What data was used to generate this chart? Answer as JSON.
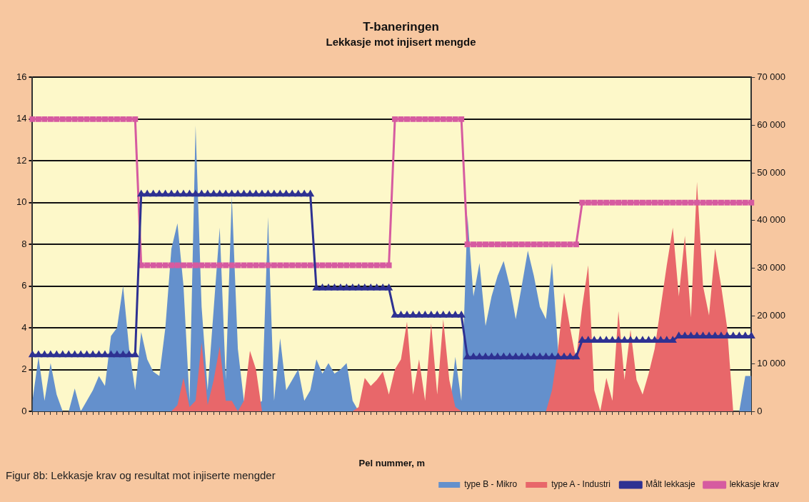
{
  "chart_data": {
    "type": "area",
    "title": "T-baneringen",
    "subtitle": "Lekkasje mot injisert mengde",
    "xlabel": "Pel nummer, m",
    "categories": [
      null,
      null,
      null,
      null,
      null,
      null,
      null,
      null,
      null,
      null,
      null,
      null,
      null,
      null,
      null,
      null,
      null,
      null,
      null,
      null,
      null,
      null,
      null,
      null,
      null,
      null,
      null,
      null,
      null,
      null,
      null,
      null,
      null,
      null,
      null,
      null,
      null,
      null,
      null,
      null,
      null,
      null,
      null,
      null,
      null,
      null,
      null,
      null,
      null,
      null,
      null,
      null,
      null,
      null,
      null,
      null,
      null,
      null,
      null,
      null,
      null,
      null,
      null,
      null,
      null,
      null,
      null,
      null,
      null,
      null,
      null,
      null,
      null,
      null,
      null,
      null,
      null,
      null,
      null,
      null,
      null,
      null,
      null,
      null,
      null,
      null,
      null,
      null,
      null,
      null,
      null,
      null,
      null,
      null,
      null,
      null,
      null,
      null,
      null,
      null,
      null,
      null,
      null,
      null,
      null,
      null,
      null,
      null,
      null,
      null,
      null,
      null,
      null,
      null,
      null,
      null,
      null,
      null,
      null,
      null
    ],
    "series": [
      {
        "name": "type B - Mikro",
        "axis": "y2",
        "color": "#6490cc",
        "values": [
          2200,
          11400,
          2200,
          10100,
          3500,
          0,
          0,
          4800,
          0,
          2200,
          4400,
          7400,
          5300,
          15800,
          17500,
          26300,
          13100,
          4400,
          16600,
          10900,
          8300,
          7400,
          17500,
          34100,
          39400,
          26300,
          2200,
          59900,
          21900,
          4400,
          null,
          38500,
          6600,
          45100,
          13100,
          2200,
          0,
          null,
          2200,
          40700,
          2200,
          15300,
          4400,
          6600,
          8800,
          2200,
          4400,
          10900,
          7900,
          10100,
          7900,
          8800,
          10100,
          2200,
          0,
          0,
          0,
          0,
          0,
          0,
          0,
          0,
          0,
          0,
          0,
          0,
          0,
          0,
          0,
          0,
          11400,
          2200,
          41100,
          24100,
          31100,
          17900,
          24100,
          28400,
          31500,
          26300,
          19300,
          26300,
          33700,
          28400,
          21900,
          19300,
          31100,
          13100,
          0,
          0,
          0,
          0,
          0,
          0,
          0,
          0,
          0,
          0,
          0,
          0,
          0,
          0,
          0,
          0,
          0,
          0,
          0,
          0,
          0,
          0,
          0,
          0,
          0,
          0,
          0,
          0,
          0,
          0,
          7400,
          7400
        ]
      },
      {
        "name": "type A - Industri",
        "axis": "y2",
        "color": "#e8676a",
        "values": [
          0,
          0,
          0,
          0,
          0,
          0,
          0,
          0,
          0,
          0,
          0,
          0,
          0,
          0,
          0,
          0,
          0,
          0,
          0,
          0,
          0,
          0,
          0,
          0,
          1300,
          7000,
          900,
          2200,
          14400,
          1300,
          6600,
          13600,
          2200,
          2200,
          0,
          2200,
          12700,
          8800,
          0,
          0,
          0,
          0,
          0,
          0,
          0,
          0,
          0,
          0,
          0,
          0,
          0,
          0,
          0,
          0,
          900,
          7000,
          5300,
          6600,
          8300,
          3500,
          8800,
          10900,
          18800,
          3500,
          10900,
          2200,
          18400,
          3500,
          19300,
          6600,
          900,
          0,
          0,
          0,
          0,
          0,
          0,
          0,
          0,
          0,
          0,
          0,
          0,
          0,
          0,
          0,
          4400,
          13100,
          24900,
          17500,
          10900,
          21900,
          30600,
          4400,
          0,
          7000,
          2200,
          21000,
          6600,
          17100,
          6600,
          3500,
          7900,
          13100,
          21900,
          30600,
          38500,
          24100,
          36800,
          19700,
          48100,
          26300,
          20100,
          34100,
          26300,
          17500,
          0,
          0,
          0,
          0
        ]
      },
      {
        "name": "Målt lekkasje",
        "type": "line",
        "axis": "y",
        "marker": "triangle",
        "color": "#2e3192",
        "values": [
          2.7,
          2.7,
          2.7,
          2.7,
          2.7,
          2.7,
          2.7,
          2.7,
          2.7,
          2.7,
          2.7,
          2.7,
          2.7,
          2.7,
          2.7,
          2.7,
          2.7,
          2.7,
          10.4,
          10.4,
          10.4,
          10.4,
          10.4,
          10.4,
          10.4,
          10.4,
          10.4,
          10.4,
          10.4,
          10.4,
          10.4,
          10.4,
          10.4,
          10.4,
          10.4,
          10.4,
          10.4,
          10.4,
          10.4,
          10.4,
          10.4,
          10.4,
          10.4,
          10.4,
          10.4,
          10.4,
          10.4,
          5.9,
          5.9,
          5.9,
          5.9,
          5.9,
          5.9,
          5.9,
          5.9,
          5.9,
          5.9,
          5.9,
          5.9,
          5.9,
          4.6,
          4.6,
          4.6,
          4.6,
          4.6,
          4.6,
          4.6,
          4.6,
          4.6,
          4.6,
          4.6,
          4.6,
          2.6,
          2.6,
          2.6,
          2.6,
          2.6,
          2.6,
          2.6,
          2.6,
          2.6,
          2.6,
          2.6,
          2.6,
          2.6,
          2.6,
          2.6,
          2.6,
          2.6,
          2.6,
          2.6,
          3.4,
          3.4,
          3.4,
          3.4,
          3.4,
          3.4,
          3.4,
          3.4,
          3.4,
          3.4,
          3.4,
          3.4,
          3.4,
          3.4,
          3.4,
          3.4,
          3.6,
          3.6,
          3.6,
          3.6,
          3.6,
          3.6,
          3.6,
          3.6,
          3.6,
          3.6,
          3.6,
          3.6,
          3.6
        ]
      },
      {
        "name": "lekkasje krav",
        "type": "line",
        "axis": "y",
        "marker": "square",
        "color": "#d65ba0",
        "values": [
          14,
          14,
          14,
          14,
          14,
          14,
          14,
          14,
          14,
          14,
          14,
          14,
          14,
          14,
          14,
          14,
          14,
          14,
          7,
          7,
          7,
          7,
          7,
          7,
          7,
          7,
          7,
          7,
          7,
          7,
          7,
          7,
          7,
          7,
          7,
          7,
          7,
          7,
          7,
          7,
          7,
          7,
          7,
          7,
          7,
          7,
          7,
          7,
          7,
          7,
          7,
          7,
          7,
          7,
          7,
          7,
          7,
          7,
          7,
          7,
          14,
          14,
          14,
          14,
          14,
          14,
          14,
          14,
          14,
          14,
          14,
          14,
          8,
          8,
          8,
          8,
          8,
          8,
          8,
          8,
          8,
          8,
          8,
          8,
          8,
          8,
          8,
          8,
          8,
          8,
          8,
          10,
          10,
          10,
          10,
          10,
          10,
          10,
          10,
          10,
          10,
          10,
          10,
          10,
          10,
          10,
          10,
          10,
          10,
          10,
          10,
          10,
          10,
          10,
          10,
          10,
          10,
          10,
          10,
          10
        ]
      }
    ],
    "ylim": [
      0,
      16
    ],
    "yticks": [
      0,
      2,
      4,
      6,
      8,
      10,
      12,
      14,
      16
    ],
    "y2lim": [
      0,
      70000
    ],
    "y2ticks": [
      {
        "value": 0,
        "label": "0"
      },
      {
        "value": 10000,
        "label": "10 000"
      },
      {
        "value": 20000,
        "label": "20 000"
      },
      {
        "value": 30000,
        "label": "30 000"
      },
      {
        "value": 40000,
        "label": "40 000"
      },
      {
        "value": 50000,
        "label": "50 000"
      },
      {
        "value": 60000,
        "label": "60 000"
      },
      {
        "value": 70000,
        "label": "70 000"
      }
    ],
    "grid": "y",
    "legend": "bottom right",
    "annotations": [
      "Figur 8b: Lekkasje krav og resultat mot injiserte mengder"
    ]
  }
}
